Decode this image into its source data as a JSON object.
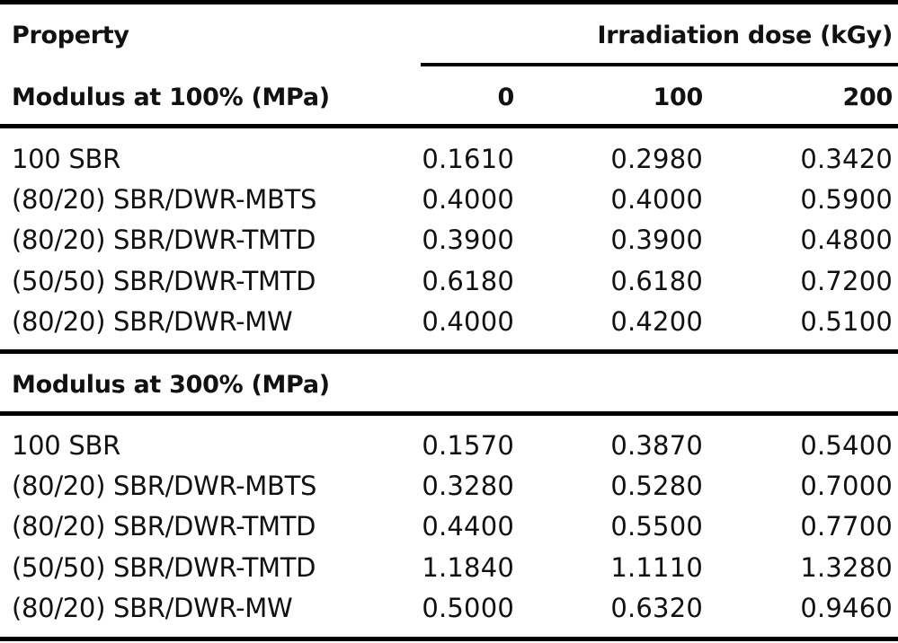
{
  "table": {
    "header": {
      "property": "Property",
      "irradiation": "Irradiation dose (kGy)",
      "doses": [
        "0",
        "100",
        "200"
      ]
    },
    "sections": [
      {
        "title": "Modulus at 100% (MPa)",
        "rows": [
          {
            "label": "100 SBR",
            "values": [
              "0.1610",
              "0.2980",
              "0.3420"
            ]
          },
          {
            "label": "(80/20) SBR/DWR-MBTS",
            "values": [
              "0.4000",
              "0.4000",
              "0.5900"
            ]
          },
          {
            "label": "(80/20) SBR/DWR-TMTD",
            "values": [
              "0.3900",
              "0.3900",
              "0.4800"
            ]
          },
          {
            "label": "(50/50) SBR/DWR-TMTD",
            "values": [
              "0.6180",
              "0.6180",
              "0.7200"
            ]
          },
          {
            "label": "(80/20) SBR/DWR-MW",
            "values": [
              "0.4000",
              "0.4200",
              "0.5100"
            ]
          }
        ]
      },
      {
        "title": "Modulus at 300% (MPa)",
        "rows": [
          {
            "label": "100 SBR",
            "values": [
              "0.1570",
              "0.3870",
              "0.5400"
            ]
          },
          {
            "label": "(80/20) SBR/DWR-MBTS",
            "values": [
              "0.3280",
              "0.5280",
              "0.7000"
            ]
          },
          {
            "label": "(80/20) SBR/DWR-TMTD",
            "values": [
              "0.4400",
              "0.5500",
              "0.7700"
            ]
          },
          {
            "label": "(50/50) SBR/DWR-TMTD",
            "values": [
              "1.1840",
              "1.1110",
              "1.3280"
            ]
          },
          {
            "label": "(80/20) SBR/DWR-MW",
            "values": [
              "0.5000",
              "0.6320",
              "0.9460"
            ]
          }
        ]
      }
    ]
  }
}
